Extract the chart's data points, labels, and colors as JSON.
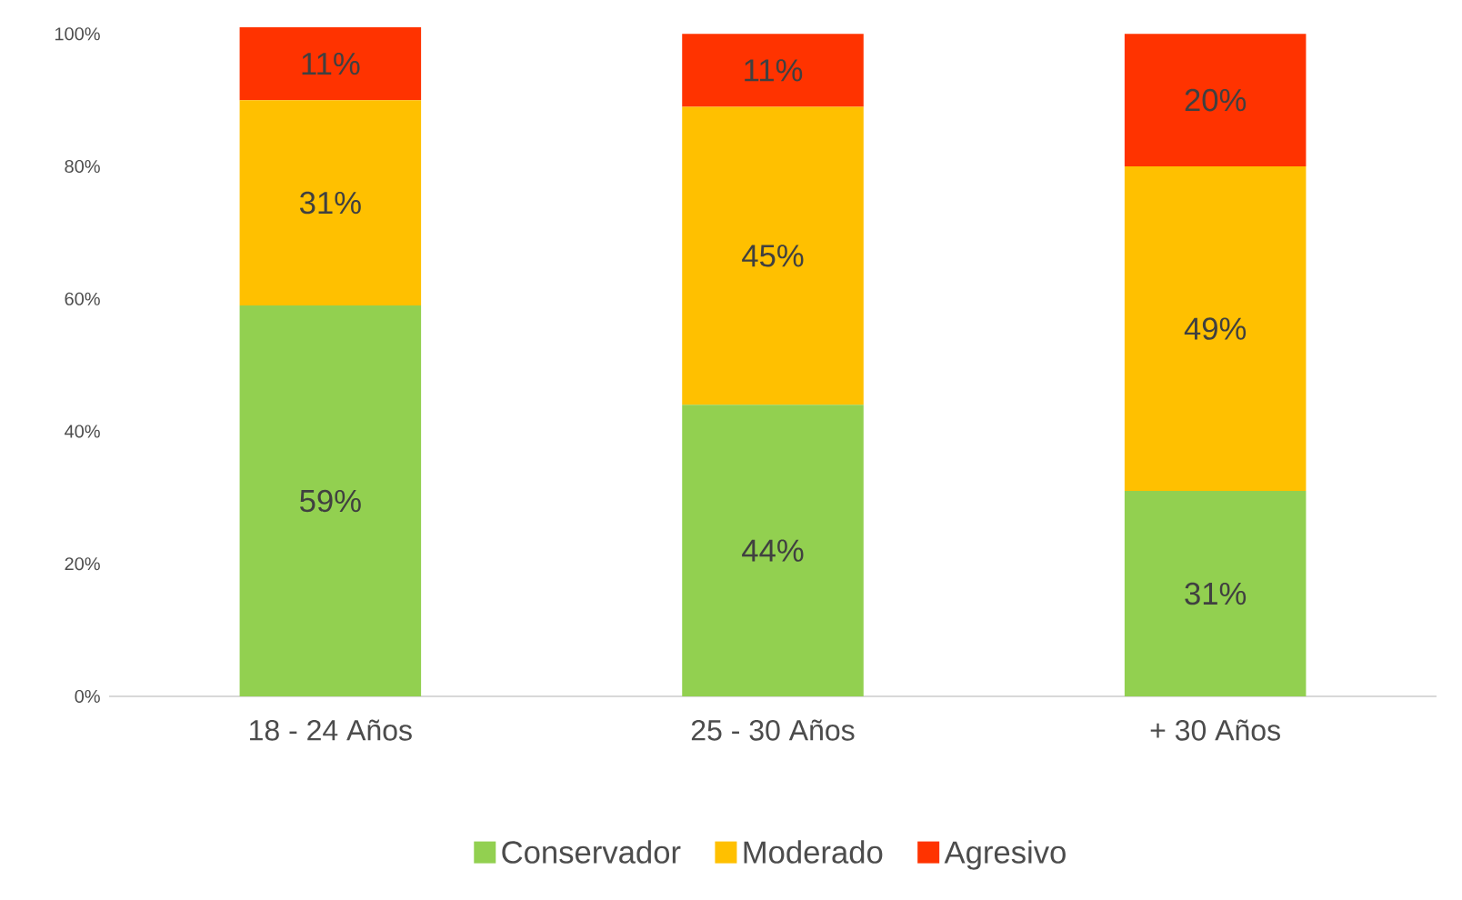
{
  "chart_data": {
    "type": "bar",
    "stacked": true,
    "categories": [
      "18 - 24 Años",
      "25 - 30 Años",
      "+ 30 Años"
    ],
    "series": [
      {
        "name": "Conservador",
        "color": "#92d050",
        "values": [
          59,
          44,
          31
        ],
        "value_labels": [
          "59%",
          "44%",
          "31%"
        ]
      },
      {
        "name": "Moderado",
        "color": "#ffc000",
        "values": [
          31,
          45,
          49
        ],
        "value_labels": [
          "31%",
          "45%",
          "49%"
        ]
      },
      {
        "name": "Agresivo",
        "color": "#ff3300",
        "values": [
          11,
          11,
          20
        ],
        "value_labels": [
          "11%",
          "11%",
          "20%"
        ]
      }
    ],
    "ylim": [
      0,
      101
    ],
    "yticks": [
      {
        "value": 0,
        "label": "0%"
      },
      {
        "value": 20,
        "label": "20%"
      },
      {
        "value": 40,
        "label": "40%"
      },
      {
        "value": 60,
        "label": "60%"
      },
      {
        "value": 80,
        "label": "80%"
      },
      {
        "value": 100,
        "label": "100%"
      }
    ],
    "grid": false,
    "legend": "bottom"
  }
}
